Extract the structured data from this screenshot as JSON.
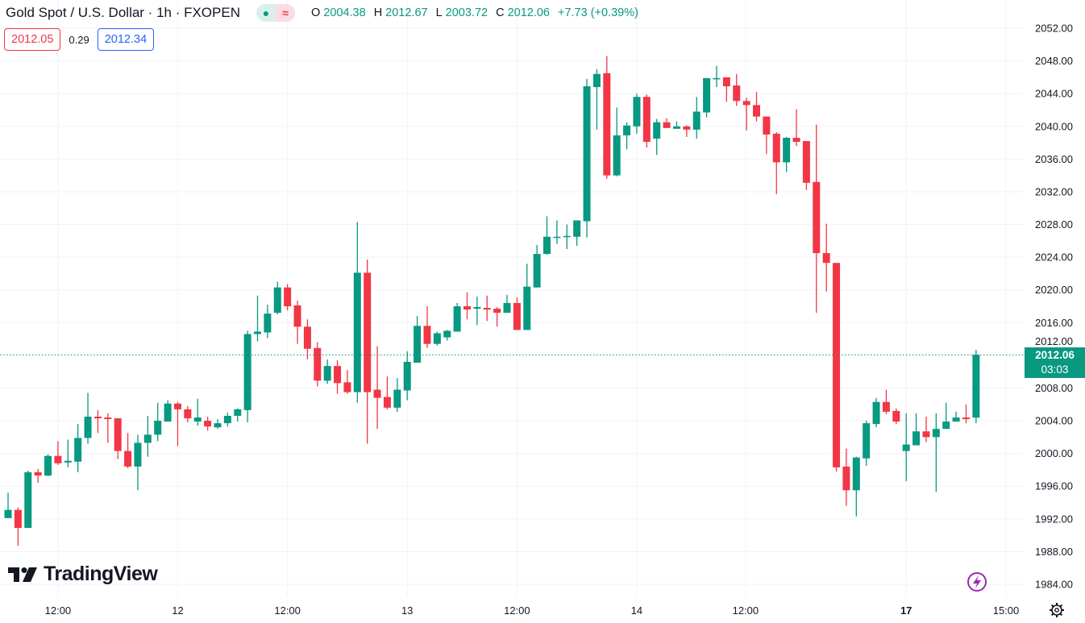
{
  "header": {
    "title": "Gold Spot / U.S. Dollar · 1h · FXOPEN",
    "ohlc": {
      "o_label": "O",
      "o": "2004.38",
      "h_label": "H",
      "h": "2012.67",
      "l_label": "L",
      "l": "2003.72",
      "c_label": "C",
      "c": "2012.06",
      "change": "+7.73 (+0.39%)"
    },
    "market_status_icons": [
      "market-open-dot-icon",
      "delayed-data-icon"
    ]
  },
  "trade": {
    "sell_price": "2012.05",
    "spread": "0.29",
    "buy_price": "2012.34"
  },
  "price_tag": {
    "price": "2012.06",
    "countdown": "03:03"
  },
  "logo": {
    "text": "TradingView"
  },
  "colors": {
    "up": "#089981",
    "down": "#F23645",
    "grid": "#f0f3fa",
    "accent_purple": "#9c27b0"
  },
  "chart_data": {
    "type": "candlestick",
    "symbol": "Gold Spot / U.S. Dollar",
    "interval": "1h",
    "ylim": [
      1982,
      2054
    ],
    "y_ticks": [
      "2052.00",
      "2048.00",
      "2044.00",
      "2040.00",
      "2036.00",
      "2032.00",
      "2028.00",
      "2024.00",
      "2020.00",
      "2016.00",
      "2012.00",
      "2008.00",
      "2004.00",
      "2000.00",
      "1996.00",
      "1992.00",
      "1988.00",
      "1984.00"
    ],
    "x_ticks": [
      {
        "label": "12:00",
        "index": 5,
        "bold": false
      },
      {
        "label": "12",
        "index": 17,
        "bold": false
      },
      {
        "label": "12:00",
        "index": 28,
        "bold": false
      },
      {
        "label": "13",
        "index": 40,
        "bold": false
      },
      {
        "label": "12:00",
        "index": 51,
        "bold": false
      },
      {
        "label": "14",
        "index": 63,
        "bold": false
      },
      {
        "label": "12:00",
        "index": 73.9,
        "bold": false
      },
      {
        "label": "17",
        "index": 90,
        "bold": true
      },
      {
        "label": "15:00",
        "index": 100,
        "bold": false
      }
    ],
    "last_price": 2012.06,
    "candles_ohlc": [
      [
        1992.1,
        1995.2,
        1992.1,
        1993.1
      ],
      [
        1993.1,
        1993.4,
        1988.7,
        1990.9
      ],
      [
        1990.9,
        1997.9,
        1990.9,
        1997.7
      ],
      [
        1997.7,
        1998.1,
        1996.4,
        1997.3
      ],
      [
        1997.3,
        1999.9,
        1997.2,
        1999.7
      ],
      [
        1999.7,
        2001.5,
        1998.6,
        1998.8
      ],
      [
        1998.9,
        2001.7,
        1998.3,
        1999.1
      ],
      [
        1999.0,
        2003.6,
        1997.7,
        2001.9
      ],
      [
        2001.9,
        2007.4,
        2001.2,
        2004.5
      ],
      [
        2004.5,
        2005.3,
        2002.5,
        2004.3
      ],
      [
        2004.4,
        2004.9,
        2001.3,
        2004.2
      ],
      [
        2004.3,
        2004.3,
        1999.3,
        2000.3
      ],
      [
        2000.3,
        2002.5,
        1998.2,
        1998.4
      ],
      [
        1998.4,
        2002.3,
        1995.5,
        2001.3
      ],
      [
        2001.3,
        2004.6,
        1999.6,
        2002.3
      ],
      [
        2002.3,
        2006.2,
        2001.5,
        2004.0
      ],
      [
        2003.9,
        2006.5,
        2003.9,
        2006.1
      ],
      [
        2006.1,
        2006.3,
        2000.9,
        2005.4
      ],
      [
        2005.4,
        2005.8,
        2003.8,
        2004.3
      ],
      [
        2003.9,
        2006.7,
        2003.4,
        2004.4
      ],
      [
        2004.0,
        2004.5,
        2002.8,
        2003.3
      ],
      [
        2003.2,
        2004.2,
        2003.0,
        2003.7
      ],
      [
        2003.7,
        2005.0,
        2003.3,
        2004.6
      ],
      [
        2004.6,
        2005.5,
        2003.9,
        2005.4
      ],
      [
        2005.3,
        2015.0,
        2003.8,
        2014.6
      ],
      [
        2014.6,
        2019.3,
        2013.7,
        2014.9
      ],
      [
        2014.8,
        2018.2,
        2014.1,
        2017.1
      ],
      [
        2017.2,
        2021.0,
        2017.0,
        2020.3
      ],
      [
        2020.3,
        2020.7,
        2017.5,
        2018.0
      ],
      [
        2018.1,
        2018.7,
        2013.4,
        2015.5
      ],
      [
        2015.5,
        2016.4,
        2011.5,
        2012.8
      ],
      [
        2012.9,
        2013.6,
        2008.2,
        2008.9
      ],
      [
        2008.9,
        2011.5,
        2008.5,
        2010.7
      ],
      [
        2010.7,
        2011.4,
        2007.3,
        2008.6
      ],
      [
        2008.7,
        2010.2,
        2007.3,
        2007.5
      ],
      [
        2007.5,
        2028.3,
        2006.2,
        2022.1
      ],
      [
        2022.1,
        2023.7,
        2001.2,
        2007.5
      ],
      [
        2007.8,
        2013.1,
        2003.0,
        2006.8
      ],
      [
        2006.9,
        2009.4,
        2005.4,
        2005.6
      ],
      [
        2005.6,
        2009.2,
        2005.1,
        2007.8
      ],
      [
        2007.7,
        2012.5,
        2006.5,
        2011.2
      ],
      [
        2011.1,
        2016.8,
        2011.1,
        2015.6
      ],
      [
        2015.6,
        2018.0,
        2012.9,
        2013.4
      ],
      [
        2013.4,
        2014.9,
        2013.2,
        2014.7
      ],
      [
        2014.2,
        2015.1,
        2013.8,
        2015.0
      ],
      [
        2014.9,
        2018.4,
        2014.9,
        2018.0
      ],
      [
        2018.0,
        2019.7,
        2016.4,
        2017.6
      ],
      [
        2017.7,
        2019.2,
        2015.7,
        2017.9
      ],
      [
        2017.8,
        2019.3,
        2016.2,
        2017.6
      ],
      [
        2017.7,
        2017.9,
        2015.5,
        2017.2
      ],
      [
        2017.2,
        2019.4,
        2017.2,
        2018.4
      ],
      [
        2018.4,
        2019.1,
        2015.1,
        2015.1
      ],
      [
        2015.1,
        2023.2,
        2015.1,
        2020.4
      ],
      [
        2020.3,
        2025.5,
        2020.3,
        2024.4
      ],
      [
        2024.4,
        2029.0,
        2024.3,
        2026.5
      ],
      [
        2026.4,
        2028.5,
        2025.6,
        2026.5
      ],
      [
        2026.5,
        2028.0,
        2025.0,
        2026.6
      ],
      [
        2026.5,
        2028.5,
        2025.4,
        2028.5
      ],
      [
        2028.4,
        2045.8,
        2026.4,
        2044.9
      ],
      [
        2044.8,
        2047.0,
        2039.6,
        2046.4
      ],
      [
        2046.5,
        2048.6,
        2033.6,
        2034.0
      ],
      [
        2034.0,
        2042.3,
        2033.9,
        2038.9
      ],
      [
        2038.9,
        2040.5,
        2037.2,
        2040.1
      ],
      [
        2040.0,
        2044.0,
        2039.1,
        2043.6
      ],
      [
        2043.6,
        2043.9,
        2037.4,
        2038.1
      ],
      [
        2038.5,
        2040.9,
        2036.5,
        2040.5
      ],
      [
        2040.5,
        2041.0,
        2039.8,
        2039.8
      ],
      [
        2039.7,
        2040.6,
        2039.7,
        2040.0
      ],
      [
        2040.0,
        2040.1,
        2038.7,
        2039.6
      ],
      [
        2039.6,
        2043.6,
        2038.5,
        2041.8
      ],
      [
        2041.7,
        2045.9,
        2041.1,
        2045.9
      ],
      [
        2045.8,
        2047.4,
        2044.8,
        2045.9
      ],
      [
        2046.0,
        2046.0,
        2043.0,
        2044.9
      ],
      [
        2045.0,
        2046.4,
        2042.5,
        2043.1
      ],
      [
        2043.1,
        2043.5,
        2039.5,
        2042.6
      ],
      [
        2042.6,
        2044.2,
        2040.6,
        2041.2
      ],
      [
        2041.2,
        2041.2,
        2036.6,
        2039.0
      ],
      [
        2039.1,
        2039.3,
        2031.7,
        2035.6
      ],
      [
        2035.6,
        2038.7,
        2034.4,
        2038.6
      ],
      [
        2038.6,
        2042.1,
        2037.6,
        2038.1
      ],
      [
        2038.2,
        2038.2,
        2032.2,
        2033.1
      ],
      [
        2033.2,
        2040.2,
        2017.2,
        2024.5
      ],
      [
        2024.5,
        2028.1,
        2019.8,
        2023.3
      ],
      [
        2023.3,
        2023.3,
        1997.8,
        1998.3
      ],
      [
        1998.4,
        2000.6,
        1993.6,
        1995.5
      ],
      [
        1995.5,
        1999.6,
        1992.3,
        1999.5
      ],
      [
        1999.4,
        2004.0,
        1998.5,
        2003.7
      ],
      [
        2003.6,
        2006.8,
        2003.2,
        2006.3
      ],
      [
        2006.3,
        2007.8,
        2004.8,
        2005.1
      ],
      [
        2005.2,
        2005.5,
        2003.6,
        2003.9
      ],
      [
        2000.3,
        2004.9,
        1996.6,
        2001.1
      ],
      [
        2001.0,
        2004.9,
        2001.0,
        2002.7
      ],
      [
        2002.7,
        2004.5,
        2001.4,
        2002.0
      ],
      [
        2002.0,
        2004.9,
        1995.3,
        2003.0
      ],
      [
        2003.0,
        2006.2,
        2003.0,
        2003.9
      ],
      [
        2003.9,
        2005.1,
        2003.9,
        2004.4
      ],
      [
        2004.4,
        2006.0,
        2003.7,
        2004.2
      ],
      [
        2004.38,
        2012.67,
        2003.72,
        2012.06
      ]
    ]
  }
}
